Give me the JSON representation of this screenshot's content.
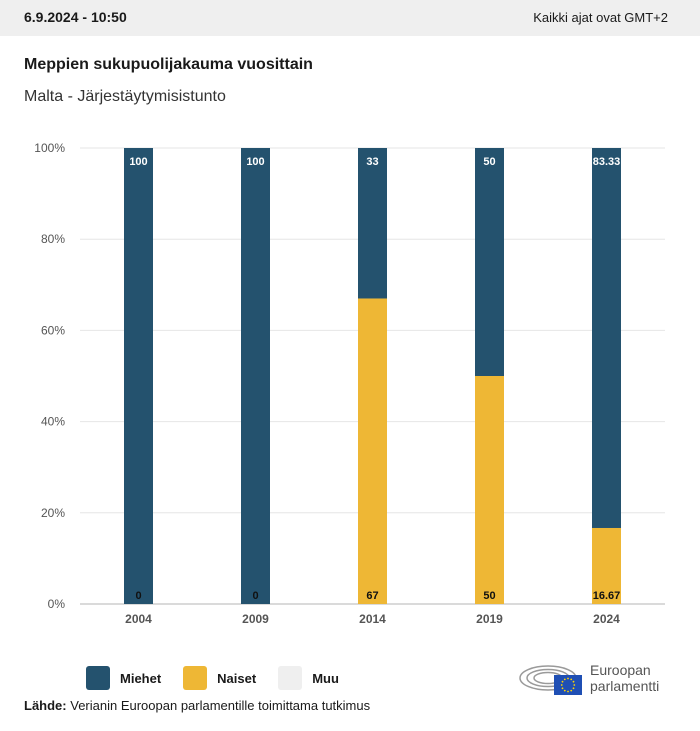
{
  "header": {
    "timestamp": "6.9.2024 - 10:50",
    "timezone_note": "Kaikki ajat ovat GMT+2"
  },
  "title": "Meppien sukupuolijakauma vuosittain",
  "subtitle": "Malta - Järjestäytymisistunto",
  "legend": [
    {
      "label": "Miehet",
      "color": "#24526e"
    },
    {
      "label": "Naiset",
      "color": "#eeb735"
    },
    {
      "label": "Muu",
      "color": "#efefef"
    }
  ],
  "source": {
    "label": "Lähde:",
    "text": " Verianin Euroopan parlamentille toimittama tutkimus"
  },
  "logo": {
    "line1": "Euroopan",
    "line2": "parlamentti"
  },
  "chart_data": {
    "type": "bar",
    "stacked": true,
    "categories": [
      "2004",
      "2009",
      "2014",
      "2019",
      "2024"
    ],
    "series": [
      {
        "name": "Naiset",
        "color": "#eeb735",
        "values": [
          0,
          0,
          67,
          50,
          16.67
        ],
        "labels": [
          "0",
          "0",
          "67",
          "50",
          "16.67"
        ]
      },
      {
        "name": "Miehet",
        "color": "#24526e",
        "values": [
          100,
          100,
          33,
          50,
          83.33
        ],
        "labels": [
          "100",
          "100",
          "33",
          "50",
          "83.33"
        ]
      },
      {
        "name": "Muu",
        "color": "#efefef",
        "values": [
          0,
          0,
          0,
          0,
          0
        ]
      }
    ],
    "ylim": [
      0,
      100
    ],
    "yticks": [
      "0%",
      "20%",
      "40%",
      "60%",
      "80%",
      "100%"
    ],
    "grid": true,
    "legend_position": "bottom-left"
  }
}
